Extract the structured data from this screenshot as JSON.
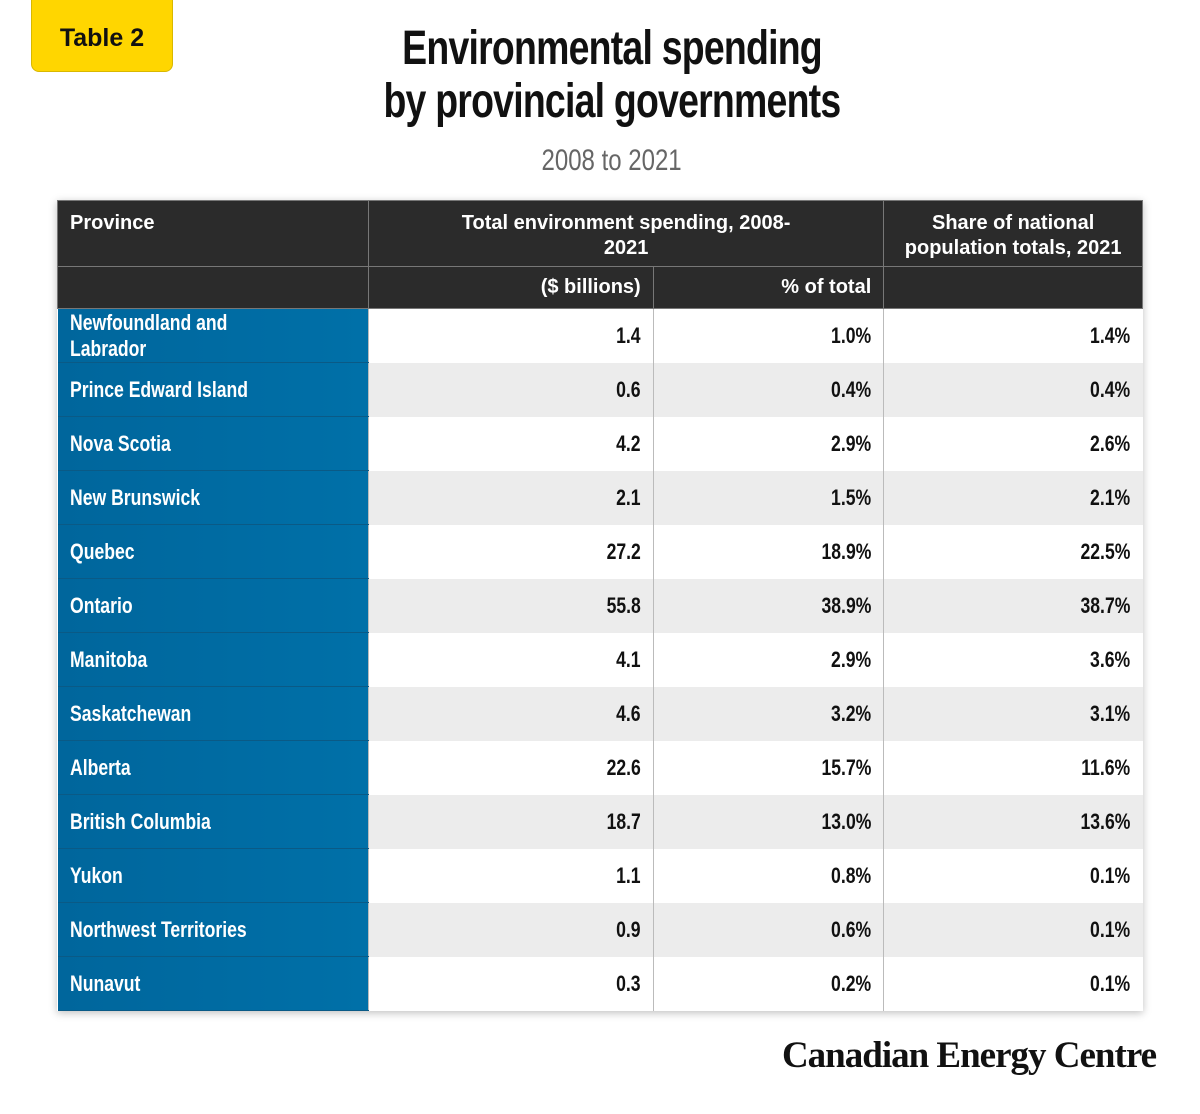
{
  "badge": "Table 2",
  "title_line1": "Environmental spending",
  "title_line2": "by provincial governments",
  "subtitle": "2008 to 2021",
  "logo": "Canadian Energy Centre",
  "colors": {
    "badge": "#FFD600",
    "header": "#2b2b2b",
    "province_column": "#00669c",
    "alt_row": "#ececec"
  },
  "chart_data": {
    "type": "table",
    "headers": {
      "province": "Province",
      "spending_group": "Total environment spending, 2008-2021",
      "population_share": "Share of national population totals, 2021",
      "billions": "($ billions)",
      "pct_total": "% of total"
    },
    "rows": [
      {
        "province": "Newfoundland and Labrador",
        "billions": "1.4",
        "pct_total": "1.0%",
        "population_share": "1.4%"
      },
      {
        "province": "Prince Edward Island",
        "billions": "0.6",
        "pct_total": "0.4%",
        "population_share": "0.4%"
      },
      {
        "province": "Nova Scotia",
        "billions": "4.2",
        "pct_total": "2.9%",
        "population_share": "2.6%"
      },
      {
        "province": "New Brunswick",
        "billions": "2.1",
        "pct_total": "1.5%",
        "population_share": "2.1%"
      },
      {
        "province": "Quebec",
        "billions": "27.2",
        "pct_total": "18.9%",
        "population_share": "22.5%"
      },
      {
        "province": "Ontario",
        "billions": "55.8",
        "pct_total": "38.9%",
        "population_share": "38.7%"
      },
      {
        "province": "Manitoba",
        "billions": "4.1",
        "pct_total": "2.9%",
        "population_share": "3.6%"
      },
      {
        "province": "Saskatchewan",
        "billions": "4.6",
        "pct_total": "3.2%",
        "population_share": "3.1%"
      },
      {
        "province": "Alberta",
        "billions": "22.6",
        "pct_total": "15.7%",
        "population_share": "11.6%"
      },
      {
        "province": "British Columbia",
        "billions": "18.7",
        "pct_total": "13.0%",
        "population_share": "13.6%"
      },
      {
        "province": "Yukon",
        "billions": "1.1",
        "pct_total": "0.8%",
        "population_share": "0.1%"
      },
      {
        "province": "Northwest Territories",
        "billions": "0.9",
        "pct_total": "0.6%",
        "population_share": "0.1%"
      },
      {
        "province": "Nunavut",
        "billions": "0.3",
        "pct_total": "0.2%",
        "population_share": "0.1%"
      }
    ]
  }
}
